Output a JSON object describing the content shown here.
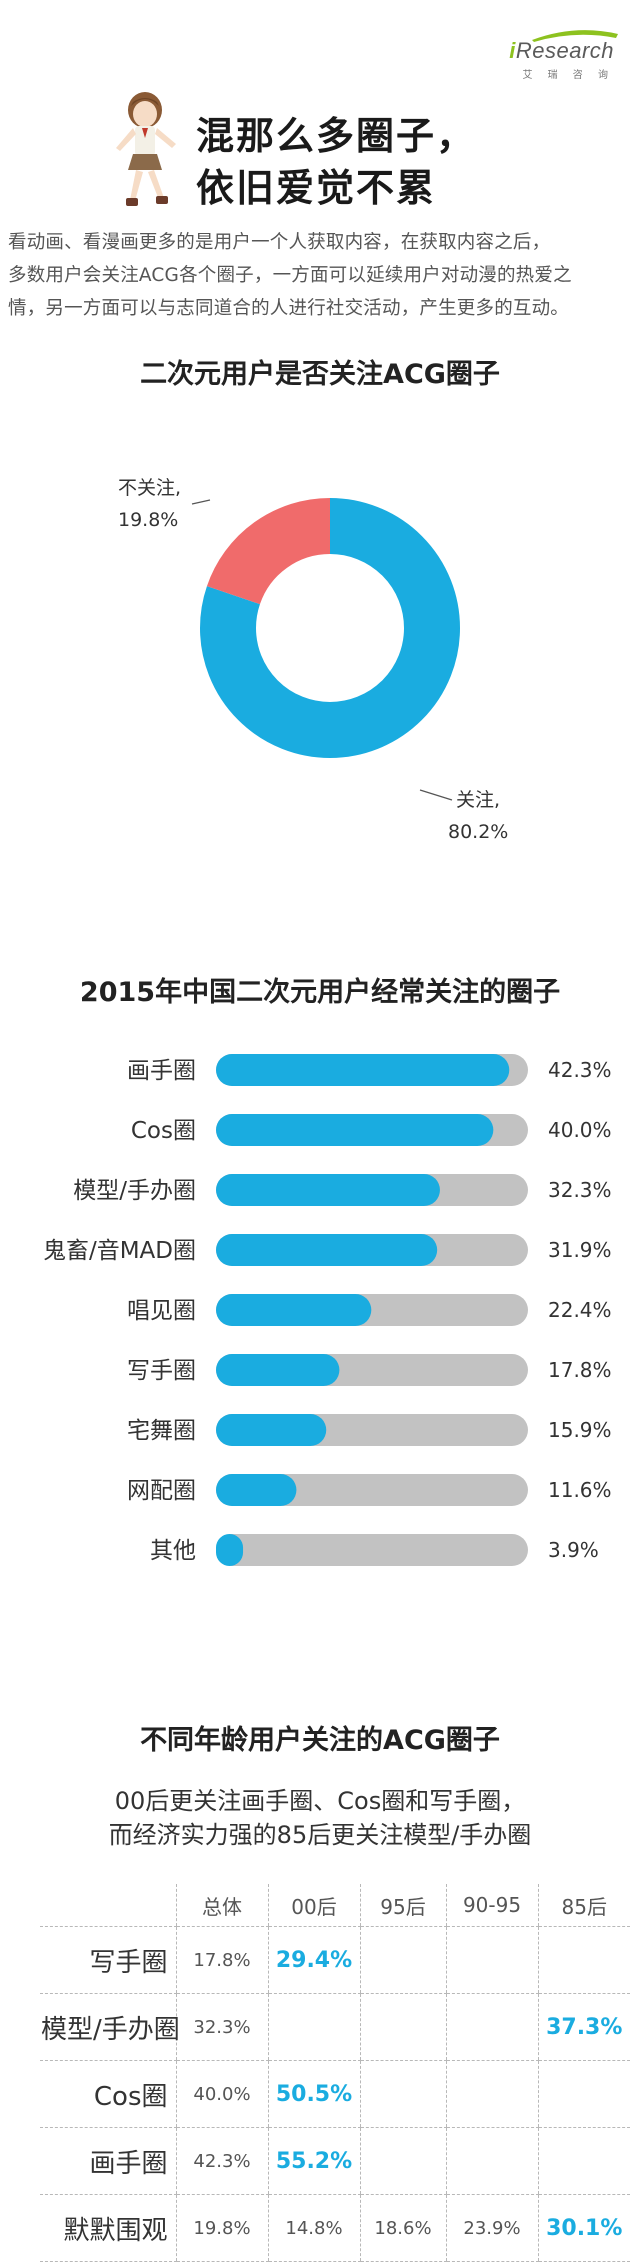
{
  "brand": {
    "logo": "iResearch",
    "sub": "艾 瑞 咨 询"
  },
  "headline": [
    "混那么多圈子，",
    "依旧爱觉不累"
  ],
  "intro": [
    "看动画、看漫画更多的是用户一个人获取内容，在获取内容之后，",
    "多数用户会关注ACG各个圈子，一方面可以延续用户对动漫的热爱之",
    "情，另一方面可以与志同道合的人进行社交活动，产生更多的互动。"
  ],
  "colors": {
    "blue": "#1aace0",
    "red": "#f06b6b",
    "gray": "#c2c2c2",
    "logo_green": "#8dc21f"
  },
  "chart_data": [
    {
      "type": "pie",
      "title": "二次元用户是否关注ACG圈子",
      "slices": [
        {
          "label": "关注",
          "value": 80.2,
          "display": "80.2%",
          "color": "#1aace0"
        },
        {
          "label": "不关注",
          "value": 19.8,
          "display": "19.8%",
          "color": "#f06b6b"
        }
      ]
    },
    {
      "type": "bar",
      "title": "2015年中国二次元用户经常关注的圈子",
      "categories": [
        "画手圈",
        "Cos圈",
        "模型/手办圈",
        "鬼畜/音MAD圈",
        "唱见圈",
        "写手圈",
        "宅舞圈",
        "网配圈",
        "其他"
      ],
      "values": [
        42.3,
        40.0,
        32.3,
        31.9,
        22.4,
        17.8,
        15.9,
        11.6,
        3.9
      ],
      "labels": [
        "42.3%",
        "40.0%",
        "32.3%",
        "31.9%",
        "22.4%",
        "17.8%",
        "15.9%",
        "11.6%",
        "3.9%"
      ],
      "xlim": [
        0,
        45
      ]
    },
    {
      "type": "table",
      "title": "不同年龄用户关注的ACG圈子",
      "subtitle": [
        "00后更关注画手圈、Cos圈和写手圈，",
        "而经济实力强的85后更关注模型/手办圈"
      ],
      "columns": [
        "",
        "总体",
        "00后",
        "95后",
        "90-95",
        "85后"
      ],
      "rows": [
        {
          "label": "写手圈",
          "cells": [
            "17.8%",
            "29.4%",
            "",
            "",
            ""
          ],
          "highlight": [
            false,
            true,
            false,
            false,
            false
          ]
        },
        {
          "label": "模型/手办圈",
          "cells": [
            "32.3%",
            "",
            "",
            "",
            "37.3%"
          ],
          "highlight": [
            false,
            false,
            false,
            false,
            true
          ]
        },
        {
          "label": "Cos圈",
          "cells": [
            "40.0%",
            "50.5%",
            "",
            "",
            ""
          ],
          "highlight": [
            false,
            true,
            false,
            false,
            false
          ]
        },
        {
          "label": "画手圈",
          "cells": [
            "42.3%",
            "55.2%",
            "",
            "",
            ""
          ],
          "highlight": [
            false,
            true,
            false,
            false,
            false
          ]
        },
        {
          "label": "默默围观",
          "cells": [
            "19.8%",
            "14.8%",
            "18.6%",
            "23.9%",
            "30.1%"
          ],
          "highlight": [
            false,
            false,
            false,
            false,
            true
          ]
        }
      ]
    }
  ]
}
